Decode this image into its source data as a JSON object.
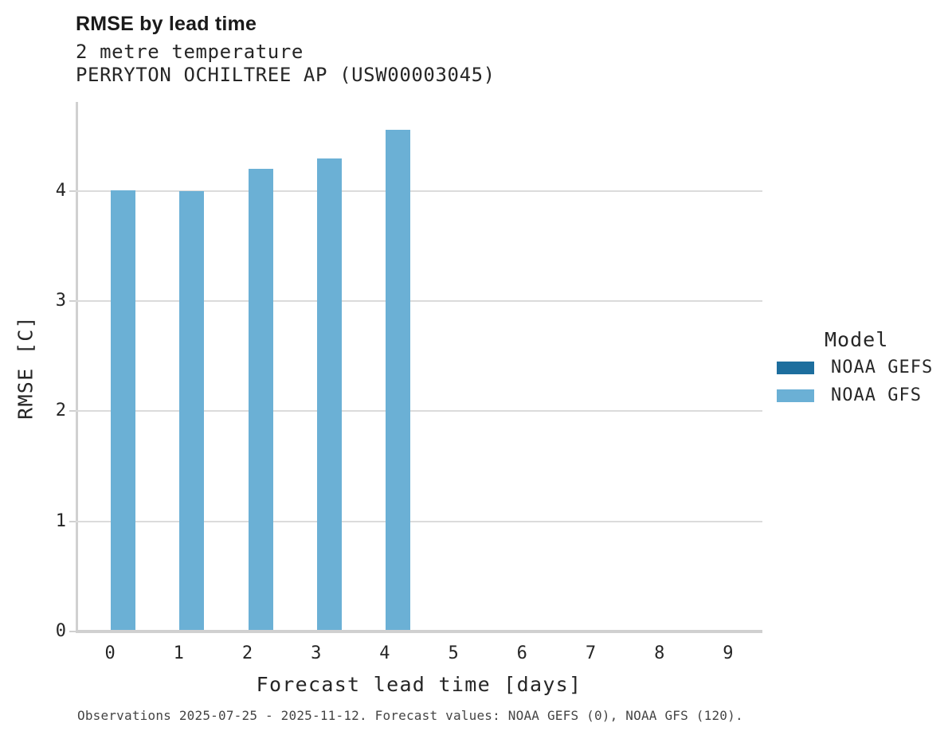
{
  "title": "RMSE by lead time",
  "subtitle_line1": "2 metre temperature",
  "subtitle_line2": "PERRYTON OCHILTREE AP (USW00003045)",
  "footer": "Observations 2025-07-25 - 2025-11-12. Forecast values: NOAA GEFS (0), NOAA GFS (120).",
  "legend": {
    "title": "Model",
    "entries": [
      {
        "label": "NOAA GEFS",
        "color": "#1d6e9e"
      },
      {
        "label": "NOAA GFS",
        "color": "#6bb0d5"
      }
    ]
  },
  "chart_data": {
    "type": "bar",
    "title": "RMSE by lead time",
    "subtitle": [
      "2 metre temperature",
      "PERRYTON OCHILTREE AP (USW00003045)"
    ],
    "xlabel": "Forecast lead time [days]",
    "ylabel": "RMSE [C]",
    "categories": [
      0,
      1,
      2,
      3,
      4,
      5,
      6,
      7,
      8,
      9
    ],
    "series": [
      {
        "name": "NOAA GEFS",
        "color": "#1d6e9e",
        "values": [
          null,
          null,
          null,
          null,
          null,
          null,
          null,
          null,
          null,
          null
        ]
      },
      {
        "name": "NOAA GFS",
        "color": "#6bb0d5",
        "values": [
          4.01,
          4.0,
          4.2,
          4.3,
          4.56,
          null,
          null,
          null,
          null,
          null
        ]
      }
    ],
    "ylim": [
      0,
      4.81
    ],
    "yticks": [
      0,
      1,
      2,
      3,
      4
    ],
    "grid": true,
    "legend_title": "Model",
    "legend_position": "right",
    "caption": "Observations 2025-07-25 - 2025-11-12. Forecast values: NOAA GEFS (0), NOAA GFS (120)."
  }
}
